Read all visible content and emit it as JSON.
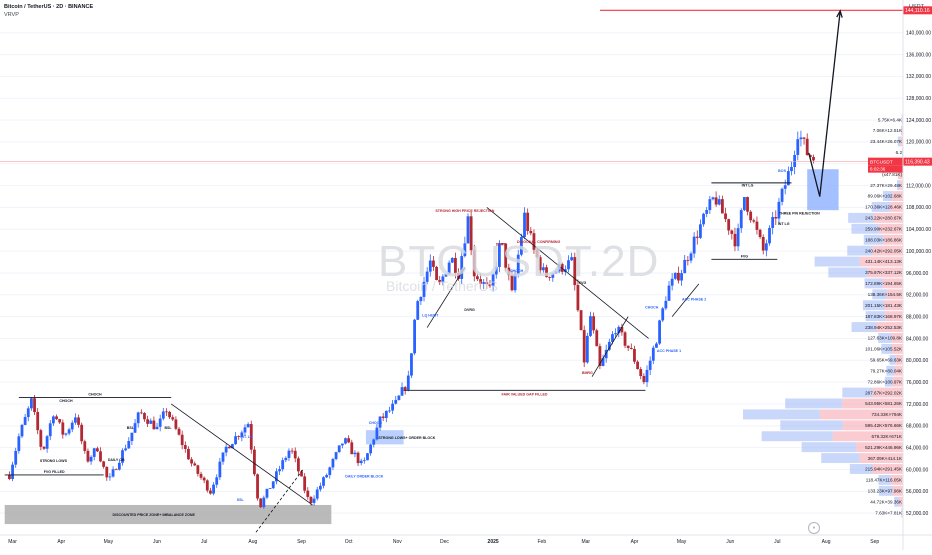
{
  "header": {
    "title": "Bitcoin / TetherUS · 2D · BINANCE",
    "indicator": "VRVP"
  },
  "watermark": {
    "symbol": "BTCUSDT.2D",
    "sub": "Bitcoin / TetherUS"
  },
  "unit": "USDT",
  "colors": {
    "up": "#2962ff",
    "down": "#b22833",
    "target": "#f23645",
    "zone_gray": "#bcbcbc",
    "zone_blue": "#2962ff",
    "zone_red": "#f23645"
  },
  "chart_data": {
    "type": "candlestick",
    "x_ticks": [
      "Mar",
      "Apr",
      "May",
      "Jun",
      "Jul",
      "Aug",
      "Sep",
      "Oct",
      "Nov",
      "Dec",
      "2025",
      "Feb",
      "Mar",
      "Apr",
      "May",
      "Jun",
      "Jul",
      "Aug",
      "Sep"
    ],
    "y_ticks": [
      52000,
      56000,
      60000,
      64000,
      68000,
      72000,
      76000,
      80000,
      84000,
      88000,
      92000,
      96000,
      100000,
      104000,
      108000,
      112000,
      116000,
      120000,
      124000,
      128000,
      132000,
      136000,
      140000
    ],
    "y_tick_labels": [
      "52,000.00",
      "56,000.00",
      "60,000.00",
      "64,000.00",
      "68,000.00",
      "72,000.00",
      "76,000.00",
      "80,000.00",
      "84,000.00",
      "88,000.00",
      "92,000.00",
      "96,000.00",
      "100,000.00",
      "104,000.00",
      "108,000.00",
      "112,000.00",
      "116,000.00",
      "120,000.00",
      "124,000.00",
      "128,000.00",
      "132,000.00",
      "136,000.00",
      "140,000.00"
    ],
    "ylim": [
      48000,
      146000
    ],
    "current_price": {
      "value": 116390.43,
      "label": "116,390.43"
    },
    "target_price": {
      "value": 144110.16,
      "label": "144,110.16"
    },
    "current_sub_label": "BTCUSDT",
    "current_sub_label2": "6:02:36",
    "anchors": [
      [
        "2024-02-28",
        59000
      ],
      [
        "2024-03-05",
        66000
      ],
      [
        "2024-03-13",
        72500
      ],
      [
        "2024-03-20",
        63000
      ],
      [
        "2024-03-27",
        70500
      ],
      [
        "2024-04-03",
        66000
      ],
      [
        "2024-04-10",
        70000
      ],
      [
        "2024-04-17",
        61500
      ],
      [
        "2024-04-24",
        64000
      ],
      [
        "2024-05-01",
        57500
      ],
      [
        "2024-05-08",
        62000
      ],
      [
        "2024-05-15",
        66000
      ],
      [
        "2024-05-21",
        70500
      ],
      [
        "2024-06-01",
        67500
      ],
      [
        "2024-06-07",
        71000
      ],
      [
        "2024-06-15",
        66000
      ],
      [
        "2024-06-24",
        60500
      ],
      [
        "2024-07-05",
        56000
      ],
      [
        "2024-07-15",
        64000
      ],
      [
        "2024-07-29",
        68500
      ],
      [
        "2024-08-05",
        53000
      ],
      [
        "2024-08-15",
        58500
      ],
      [
        "2024-08-25",
        64000
      ],
      [
        "2024-09-06",
        53800
      ],
      [
        "2024-09-16",
        58500
      ],
      [
        "2024-09-28",
        65500
      ],
      [
        "2024-10-10",
        60500
      ],
      [
        "2024-10-21",
        69000
      ],
      [
        "2024-10-31",
        72000
      ],
      [
        "2024-11-08",
        76500
      ],
      [
        "2024-11-13",
        90000
      ],
      [
        "2024-11-22",
        98000
      ],
      [
        "2024-11-27",
        93000
      ],
      [
        "2024-12-05",
        99000
      ],
      [
        "2024-12-10",
        96000
      ],
      [
        "2024-12-16",
        106000
      ],
      [
        "2024-12-20",
        96000
      ],
      [
        "2024-12-30",
        92500
      ],
      [
        "2025-01-06",
        102000
      ],
      [
        "2025-01-13",
        92000
      ],
      [
        "2025-01-21",
        106500
      ],
      [
        "2025-01-27",
        100000
      ],
      [
        "2025-02-03",
        95500
      ],
      [
        "2025-02-20",
        98000
      ],
      [
        "2025-02-28",
        80000
      ],
      [
        "2025-03-04",
        88000
      ],
      [
        "2025-03-10",
        78500
      ],
      [
        "2025-03-20",
        86000
      ],
      [
        "2025-03-30",
        81500
      ],
      [
        "2025-04-07",
        76000
      ],
      [
        "2025-04-15",
        84000
      ],
      [
        "2025-04-22",
        93000
      ],
      [
        "2025-05-01",
        96500
      ],
      [
        "2025-05-12",
        104000
      ],
      [
        "2025-05-22",
        110000
      ],
      [
        "2025-06-05",
        101500
      ],
      [
        "2025-06-10",
        110000
      ],
      [
        "2025-06-22",
        100000
      ],
      [
        "2025-07-01",
        107500
      ],
      [
        "2025-07-10",
        116000
      ],
      [
        "2025-07-14",
        122000
      ],
      [
        "2025-07-20",
        118000
      ],
      [
        "2025-07-24",
        117000
      ]
    ],
    "levels": [
      {
        "price": 74500,
        "from": "2024-11-05",
        "to": "2025-04-08",
        "color": "#131722",
        "label": "FAIR VALUED GAP FILLED"
      },
      {
        "price": 73200,
        "from": "2024-03-05",
        "to": "2024-06-10",
        "color": "#131722",
        "label": "CHOCH"
      },
      {
        "price": 59000,
        "from": "2024-02-25",
        "to": "2024-04-28",
        "color": "#131722",
        "label": "FVG FILLED"
      },
      {
        "price": 112500,
        "from": "2025-05-20",
        "to": "2025-07-10",
        "color": "#131722",
        "label": ""
      },
      {
        "price": 98500,
        "from": "2025-05-20",
        "to": "2025-07-01",
        "color": "#131722",
        "label": "FVG"
      }
    ],
    "zones": [
      {
        "label": "DISCOUNTED PRICE ZONE+ IMBALANCE ZONE",
        "from": "2024-02-25",
        "to": "2024-09-20",
        "low": 50000,
        "high": 53500,
        "color": "#a9a9a9"
      },
      {
        "label": "STRONG LOWS+ ORDER BLOCK",
        "from": "2024-10-12",
        "to": "2024-11-05",
        "low": 64600,
        "high": 67200,
        "color": "#a9c4ff"
      },
      {
        "label": "",
        "from": "2025-07-20",
        "to": "2025-08-09",
        "low": 107500,
        "high": 115000,
        "color": "#8fb0ff"
      }
    ],
    "projection": [
      [
        "2025-07-21",
        118000
      ],
      [
        "2025-07-28",
        110000
      ],
      [
        "2025-08-10",
        144000
      ]
    ],
    "vrvp_rows": [
      {
        "price": 124000,
        "up": 5.75,
        "down": 6.4,
        "label": "5.75K×6.4K"
      },
      {
        "price": 122000,
        "up": 7.06,
        "down": 12.51,
        "label": "7.06K×12.51K"
      },
      {
        "price": 120000,
        "up": 23.44,
        "down": 26.07,
        "label": "23.44K×26.07K"
      },
      {
        "price": 118000,
        "up": 6.2,
        "down": 4.0,
        "label": "6.2"
      },
      {
        "price": 114000,
        "up": 0,
        "down": 47.81,
        "label": "(x47.81K)"
      },
      {
        "price": 112000,
        "up": 27.37,
        "down": 29.48,
        "label": "27.37K×29.48K"
      },
      {
        "price": 110000,
        "up": 89.06,
        "down": 102.68,
        "label": "89.06K×102.68K"
      },
      {
        "price": 108000,
        "up": 170.36,
        "down": 128.46,
        "label": "170.36K×128.46K"
      },
      {
        "price": 106000,
        "up": 243.22,
        "down": 280.67,
        "label": "243.22K×280.67K"
      },
      {
        "price": 104000,
        "up": 259.9,
        "down": 232.67,
        "label": "259.90K×232.67K"
      },
      {
        "price": 102000,
        "up": 188.03,
        "down": 186.86,
        "label": "188.03K×186.86K"
      },
      {
        "price": 100000,
        "up": 240.42,
        "down": 292.05,
        "label": "240.42K×292.05K"
      },
      {
        "price": 98000,
        "up": 431.14,
        "down": 413.13,
        "label": "431.14K×413.13K"
      },
      {
        "price": 96000,
        "up": 375.87,
        "down": 337.12,
        "label": "375.87K×337.12K"
      },
      {
        "price": 94000,
        "up": 172.89,
        "down": 194.65,
        "label": "172.89K×194.65K"
      },
      {
        "price": 92000,
        "up": 138.36,
        "down": 154.5,
        "label": "138.36K×154.5K"
      },
      {
        "price": 90000,
        "up": 201.15,
        "down": 181.43,
        "label": "201.15K×181.43K"
      },
      {
        "price": 88000,
        "up": 187.83,
        "down": 168.97,
        "label": "187.83K×168.97K"
      },
      {
        "price": 86000,
        "up": 238.94,
        "down": 252.53,
        "label": "238.94K×252.53K"
      },
      {
        "price": 84000,
        "up": 127.63,
        "down": 109.8,
        "label": "127.63K×109.8K"
      },
      {
        "price": 82000,
        "up": 101.06,
        "down": 105.52,
        "label": "101.06K×105.52K"
      },
      {
        "price": 80000,
        "up": 59.65,
        "down": 69.63,
        "label": "59.65K×69.63K"
      },
      {
        "price": 78000,
        "up": 79.27,
        "down": 80.04,
        "label": "79.27K×80.04K"
      },
      {
        "price": 76000,
        "up": 72.86,
        "down": 100.97,
        "label": "72.86K×100.97K"
      },
      {
        "price": 74000,
        "up": 287.67,
        "down": 292.02,
        "label": "287.67K×292.02K"
      },
      {
        "price": 72000,
        "up": 543.95,
        "down": 581.26,
        "label": "543.95K×581.26K"
      },
      {
        "price": 70000,
        "up": 734.33,
        "down": 794.0,
        "label": "734.33K×794K"
      },
      {
        "price": 68000,
        "up": 595.42,
        "down": 576.66,
        "label": "595.42K×576.66K"
      },
      {
        "price": 66000,
        "up": 679.32,
        "down": 671.0,
        "label": "679.32K×671K"
      },
      {
        "price": 64000,
        "up": 521.29,
        "down": 446.96,
        "label": "521.29K×446.96K"
      },
      {
        "price": 62000,
        "up": 367.09,
        "down": 414.1,
        "label": "367.09K×414.1K"
      },
      {
        "price": 60000,
        "up": 215.94,
        "down": 291.45,
        "label": "215.94K×291.45K"
      },
      {
        "price": 58000,
        "up": 118.47,
        "down": 116.05,
        "label": "118.47K×116.05K"
      },
      {
        "price": 56000,
        "up": 133.23,
        "down": 97.96,
        "label": "133.23K×97.96K"
      },
      {
        "price": 54000,
        "up": 44.72,
        "down": 39.36,
        "label": "44.72K×39.36K"
      },
      {
        "price": 52000,
        "up": 7.63,
        "down": 7.81,
        "label": "7.63K×7.81K"
      }
    ],
    "annotations": [
      {
        "text": "CHOCH",
        "date": "2024-04-04",
        "price": 72400,
        "color": "#131722"
      },
      {
        "text": "STRONG LOWS",
        "date": "2024-03-27",
        "price": 61400,
        "color": "#131722"
      },
      {
        "text": "DAILY OB",
        "date": "2024-05-06",
        "price": 61600,
        "color": "#131722"
      },
      {
        "text": "BSL",
        "date": "2024-05-15",
        "price": 67400,
        "color": "#131722"
      },
      {
        "text": "BSL",
        "date": "2024-06-08",
        "price": 67400,
        "color": "#131722"
      },
      {
        "text": "INT. LG",
        "date": "2024-07-28",
        "price": 65800,
        "color": "#2962ff"
      },
      {
        "text": "SSL",
        "date": "2024-07-24",
        "price": 54200,
        "color": "#2962ff"
      },
      {
        "text": "CHOCH",
        "date": "2024-10-18",
        "price": 68300,
        "color": "#2962ff"
      },
      {
        "text": "DAILY ORDER BLOCK",
        "date": "2024-10-11",
        "price": 58500,
        "color": "#2962ff"
      },
      {
        "text": "STRONG HIGH PRICE REJECTION",
        "date": "2024-12-14",
        "price": 107200,
        "color": "#b22833"
      },
      {
        "text": "LQ HUNT",
        "date": "2024-11-22",
        "price": 88000,
        "color": "#2962ff"
      },
      {
        "text": "DVRG",
        "date": "2024-12-17",
        "price": 89000,
        "color": "#131722"
      },
      {
        "text": "DVRG",
        "date": "2025-01-06",
        "price": 101000,
        "color": "#b22833"
      },
      {
        "text": "CHOCH",
        "date": "2025-01-16",
        "price": 96200,
        "color": "#2962ff"
      },
      {
        "text": "DIAGONAL CONFIRMING",
        "date": "2025-01-30",
        "price": 101500,
        "color": "#b22833"
      },
      {
        "text": "FVG",
        "date": "2025-02-27",
        "price": 94000,
        "color": "#131722"
      },
      {
        "text": "CHOCH",
        "date": "2025-04-12",
        "price": 89500,
        "color": "#2962ff"
      },
      {
        "text": "BMRG",
        "date": "2025-03-02",
        "price": 77500,
        "color": "#b22833"
      },
      {
        "text": "ACC PHASE 1",
        "date": "2025-04-23",
        "price": 81500,
        "color": "#2962ff"
      },
      {
        "text": "ACC PHASE 2",
        "date": "2025-05-09",
        "price": 91000,
        "color": "#2962ff"
      },
      {
        "text": "INT LG",
        "date": "2025-06-12",
        "price": 111800,
        "color": "#131722"
      },
      {
        "text": "INT LG",
        "date": "2025-07-05",
        "price": 104800,
        "color": "#131722"
      },
      {
        "text": "THREE PIN REJECTION",
        "date": "2025-07-15",
        "price": 106700,
        "color": "#131722"
      },
      {
        "text": "BOS",
        "date": "2025-07-04",
        "price": 114500,
        "color": "#2962ff"
      }
    ]
  }
}
